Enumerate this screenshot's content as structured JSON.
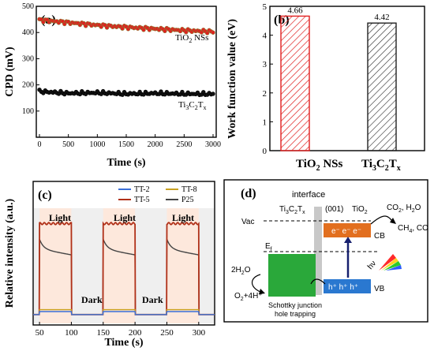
{
  "chart_data": [
    {
      "panel": "(a)",
      "type": "scatter",
      "xlabel": "Time (s)",
      "ylabel": "CPD (mV)",
      "xlim": [
        0,
        3000
      ],
      "ylim": [
        0,
        500
      ],
      "xticks": [
        0,
        500,
        1000,
        1500,
        2000,
        2500,
        3000
      ],
      "yticks": [
        100,
        200,
        300,
        400,
        500
      ],
      "series": [
        {
          "name": "TiO2 NSs",
          "label_main": "TiO",
          "label_sub": "2",
          "label_tail": " NSs",
          "color": "#e02020",
          "x": [
            0,
            500,
            1000,
            1500,
            2000,
            2500,
            3000
          ],
          "y": [
            448,
            438,
            428,
            420,
            414,
            408,
            403
          ]
        },
        {
          "name": "Ti3C2Tx",
          "label_main": "Ti",
          "label_sub1": "3",
          "label_mid": "C",
          "label_sub2": "2",
          "label_mid2": "T",
          "label_sub3": "x",
          "color": "#111111",
          "x": [
            0,
            500,
            1000,
            1500,
            2000,
            2500,
            3000
          ],
          "y": [
            175,
            168,
            170,
            166,
            168,
            166,
            165
          ]
        }
      ]
    },
    {
      "panel": "(b)",
      "type": "bar",
      "ylabel": "Work function value (eV)",
      "ylim": [
        0,
        5
      ],
      "yticks": [
        0,
        1,
        2,
        3,
        4,
        5
      ],
      "categories": [
        {
          "main": "TiO",
          "sub": "2",
          "tail": " NSs"
        },
        {
          "main": "Ti",
          "sub": "3",
          "mid": "C",
          "sub2": "2",
          "mid2": "T",
          "sub3": "x"
        }
      ],
      "values": [
        4.66,
        4.42
      ],
      "value_labels": [
        "4.66",
        "4.42"
      ],
      "colors": [
        "#e02020",
        "#222222"
      ]
    },
    {
      "panel": "(c)",
      "type": "line",
      "xlabel": "Time (s)",
      "ylabel": "Relative intensity (a.u.)",
      "xlim": [
        40,
        325
      ],
      "xticks": [
        50,
        100,
        150,
        200,
        250,
        300
      ],
      "light_windows": [
        [
          50,
          100
        ],
        [
          150,
          200
        ],
        [
          250,
          300
        ]
      ],
      "annotations": {
        "light": "Light",
        "dark": "Dark"
      },
      "series": [
        {
          "name": "TT-2",
          "color": "#3a6fd8",
          "on": 0.04,
          "peak": 0.04
        },
        {
          "name": "TT-8",
          "color": "#c8a020",
          "on": 0.06,
          "peak": 0.06
        },
        {
          "name": "TT-5",
          "color": "#b03018",
          "on": 0.94,
          "peak": 0.96
        },
        {
          "name": "P25",
          "color": "#444444",
          "on": 0.62,
          "peak": 0.72
        }
      ]
    }
  ],
  "diagram_d": {
    "panel": "(d)",
    "interface": "interface",
    "ti3c2tx": {
      "main": "Ti",
      "s1": "3",
      "m": "C",
      "s2": "2",
      "m2": "T",
      "s3": "x"
    },
    "facet": "(001)",
    "tio2": {
      "main": "TiO",
      "sub": "2"
    },
    "vac": "Vac",
    "ef": {
      "main": "E",
      "sub": "f"
    },
    "electrons": "e⁻ e⁻ e⁻",
    "holes": "h⁺ h⁺ h⁺",
    "cb": "CB",
    "vb": "VB",
    "hv": "hν",
    "co2_h2o": {
      "a": "CO",
      "s": "2",
      "b": ", H",
      "s2": "2",
      "c": "O"
    },
    "ch4_co": {
      "a": "CH",
      "s": "4",
      "b": ", CO"
    },
    "h2o": {
      "a": "2H",
      "s": "2",
      "b": "O"
    },
    "o2": {
      "a": "O",
      "s": "2",
      "b": "+4H⁺"
    },
    "schottky1": "Schottky junction",
    "schottky2": "hole trapping"
  }
}
